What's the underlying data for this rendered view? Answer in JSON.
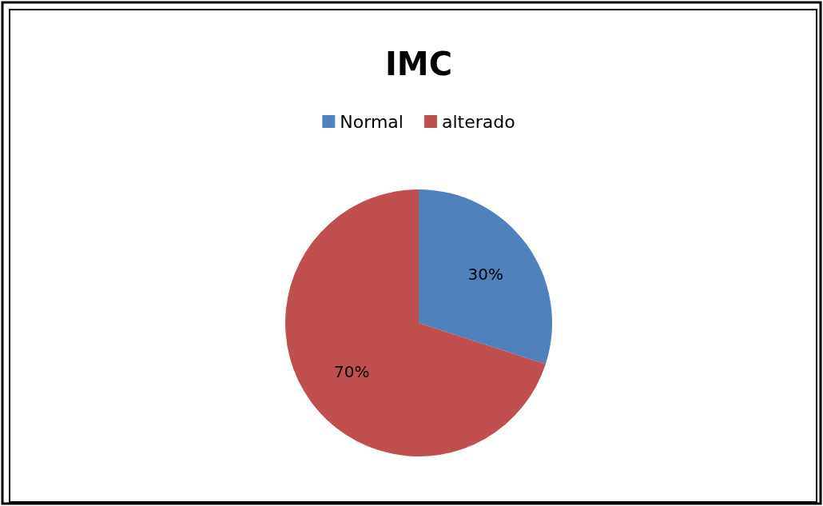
{
  "chart_data": {
    "type": "pie",
    "title": "IMC",
    "categories": [
      "Normal",
      "alterado"
    ],
    "values": [
      30,
      70
    ],
    "colors": [
      "#4f81bd",
      "#c0504d"
    ],
    "value_labels": [
      "30%",
      "70%"
    ],
    "legend": "top"
  }
}
